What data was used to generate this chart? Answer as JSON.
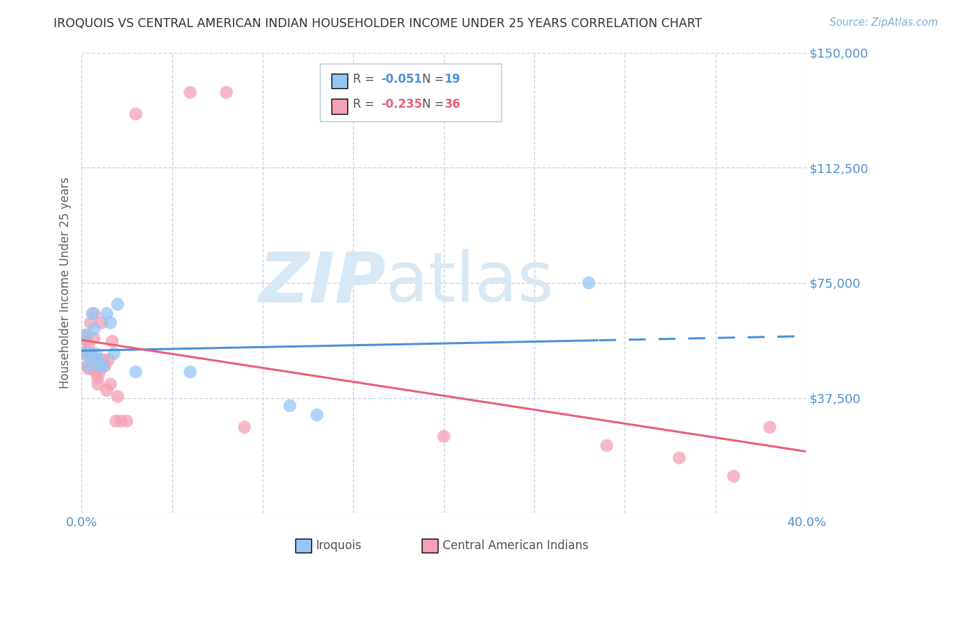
{
  "title": "IROQUOIS VS CENTRAL AMERICAN INDIAN HOUSEHOLDER INCOME UNDER 25 YEARS CORRELATION CHART",
  "source": "Source: ZipAtlas.com",
  "ylabel": "Householder Income Under 25 years",
  "xlim": [
    0.0,
    0.4
  ],
  "ylim": [
    0,
    150000
  ],
  "yticks": [
    0,
    37500,
    75000,
    112500,
    150000
  ],
  "ytick_labels": [
    "",
    "$37,500",
    "$75,000",
    "$112,500",
    "$150,000"
  ],
  "xticks": [
    0.0,
    0.05,
    0.1,
    0.15,
    0.2,
    0.25,
    0.3,
    0.35,
    0.4
  ],
  "iroquois_color": "#94C6F5",
  "central_color": "#F4A0B5",
  "trendline_blue": "#4A90D9",
  "trendline_pink": "#E8607A",
  "iroquois_R": -0.051,
  "iroquois_N": 19,
  "central_R": -0.235,
  "central_N": 36,
  "iroquois_x": [
    0.002,
    0.003,
    0.004,
    0.005,
    0.006,
    0.007,
    0.008,
    0.009,
    0.01,
    0.012,
    0.014,
    0.016,
    0.018,
    0.02,
    0.03,
    0.06,
    0.115,
    0.13,
    0.28
  ],
  "iroquois_y": [
    52000,
    58000,
    48000,
    52000,
    65000,
    60000,
    52000,
    50000,
    48000,
    48000,
    65000,
    62000,
    52000,
    68000,
    46000,
    46000,
    35000,
    32000,
    75000
  ],
  "central_x": [
    0.001,
    0.002,
    0.003,
    0.003,
    0.004,
    0.004,
    0.005,
    0.005,
    0.006,
    0.007,
    0.007,
    0.008,
    0.008,
    0.009,
    0.009,
    0.01,
    0.011,
    0.012,
    0.013,
    0.014,
    0.015,
    0.016,
    0.017,
    0.019,
    0.02,
    0.022,
    0.025,
    0.03,
    0.06,
    0.08,
    0.09,
    0.2,
    0.29,
    0.33,
    0.36,
    0.38
  ],
  "central_y": [
    52000,
    58000,
    56000,
    48000,
    55000,
    47000,
    62000,
    52000,
    47000,
    65000,
    57000,
    50000,
    46000,
    44000,
    42000,
    46000,
    62000,
    50000,
    48000,
    40000,
    50000,
    42000,
    56000,
    30000,
    38000,
    30000,
    30000,
    130000,
    137000,
    137000,
    28000,
    25000,
    22000,
    18000,
    12000,
    28000
  ],
  "background_color": "#FFFFFF",
  "grid_color": "#C0D0E0",
  "title_color": "#303030",
  "axis_label_color": "#606060",
  "ytick_color": "#5090D0",
  "xtick_color": "#5090D0",
  "watermark_zip": "ZIP",
  "watermark_atlas": "atlas",
  "watermark_color": "#D8E8F5"
}
